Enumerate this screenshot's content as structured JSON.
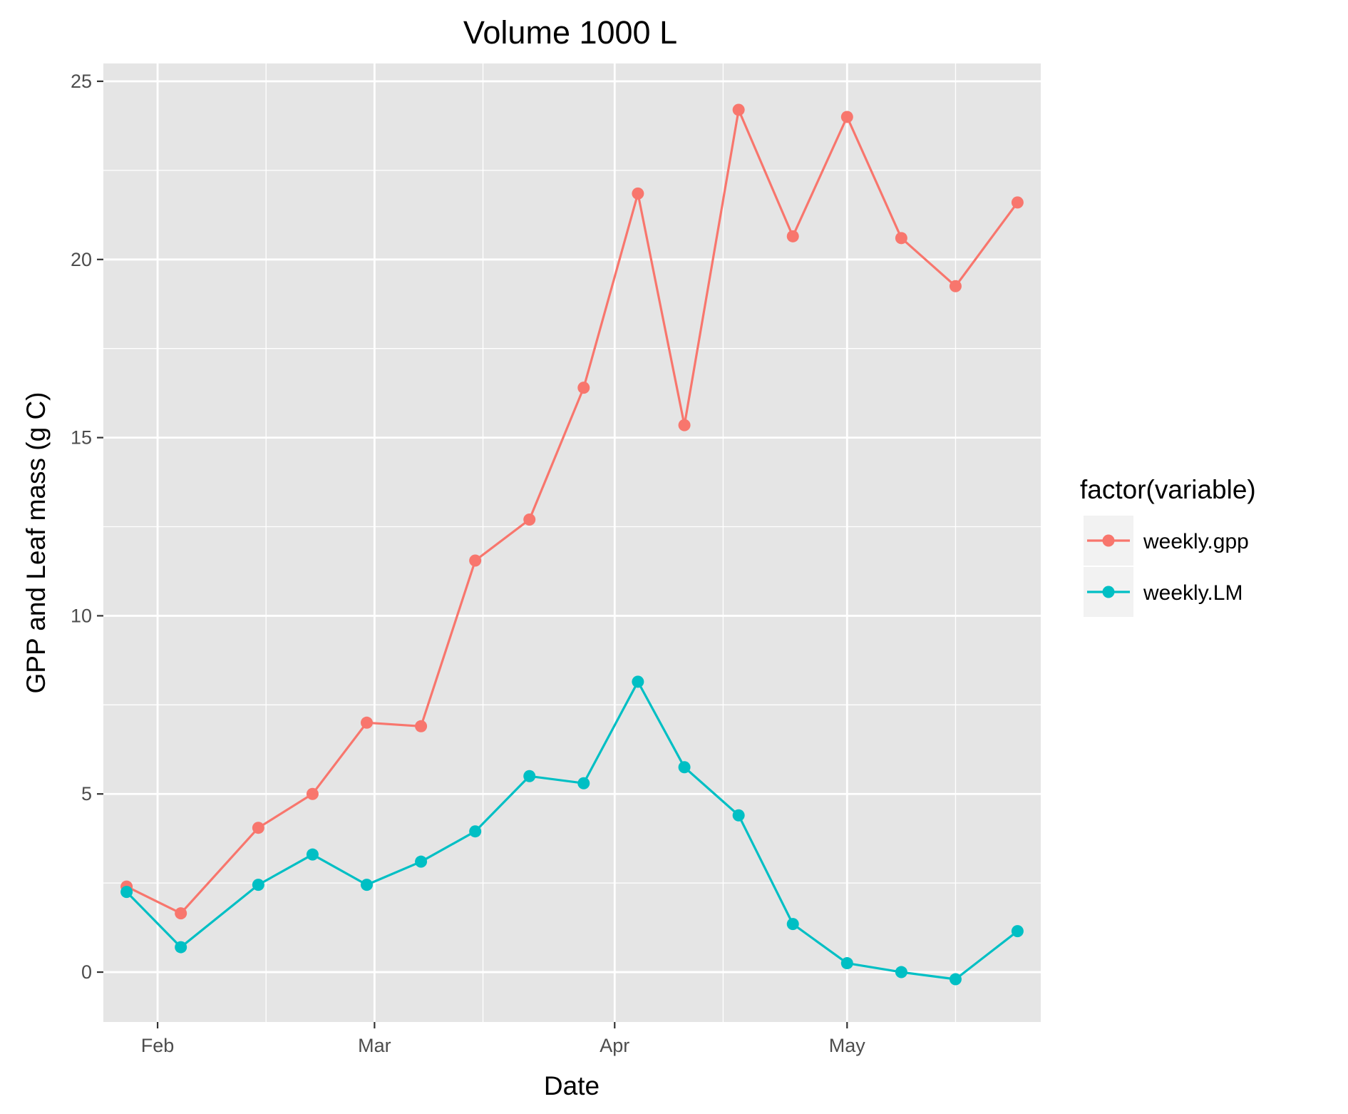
{
  "chart_data": {
    "type": "line",
    "title": "Volume 1000 L",
    "xlabel": "Date",
    "ylabel": "GPP and Leaf mass (g C)",
    "x": [
      "2013-01-28",
      "2013-02-04",
      "2013-02-14",
      "2013-02-21",
      "2013-02-28",
      "2013-03-07",
      "2013-03-14",
      "2013-03-21",
      "2013-03-28",
      "2013-04-04",
      "2013-04-10",
      "2013-04-17",
      "2013-04-24",
      "2013-05-01",
      "2013-05-08",
      "2013-05-15",
      "2013-05-23"
    ],
    "series": [
      {
        "name": "weekly.gpp",
        "color": "#F8766D",
        "values": [
          2.4,
          1.65,
          4.05,
          5.0,
          7.0,
          6.9,
          11.55,
          12.7,
          16.4,
          21.85,
          15.35,
          24.2,
          20.65,
          24.0,
          20.6,
          19.25,
          21.6
        ]
      },
      {
        "name": "weekly.LM",
        "color": "#00BFC4",
        "values": [
          2.25,
          0.7,
          2.45,
          3.3,
          2.45,
          3.1,
          3.95,
          5.5,
          5.3,
          8.15,
          5.75,
          4.4,
          1.35,
          0.25,
          0.0,
          -0.2,
          1.15
        ]
      }
    ],
    "xlim": [
      "2013-01-25",
      "2013-05-26"
    ],
    "ylim": [
      -1.4,
      25.5
    ],
    "y_ticks": [
      0,
      5,
      10,
      15,
      20,
      25
    ],
    "x_ticks": [
      {
        "date": "2013-02-01",
        "label": "Feb"
      },
      {
        "date": "2013-03-01",
        "label": "Mar"
      },
      {
        "date": "2013-04-01",
        "label": "Apr"
      },
      {
        "date": "2013-05-01",
        "label": "May"
      }
    ],
    "x_minor_ticks": [
      "2013-02-15",
      "2013-03-15",
      "2013-04-15",
      "2013-05-15"
    ],
    "grid": true,
    "legend": {
      "title": "factor(variable)",
      "position": "right"
    },
    "colors": {
      "panel_background": "#E5E5E5",
      "grid": "#FFFFFF",
      "tick_text": "#4D4D4D"
    }
  }
}
